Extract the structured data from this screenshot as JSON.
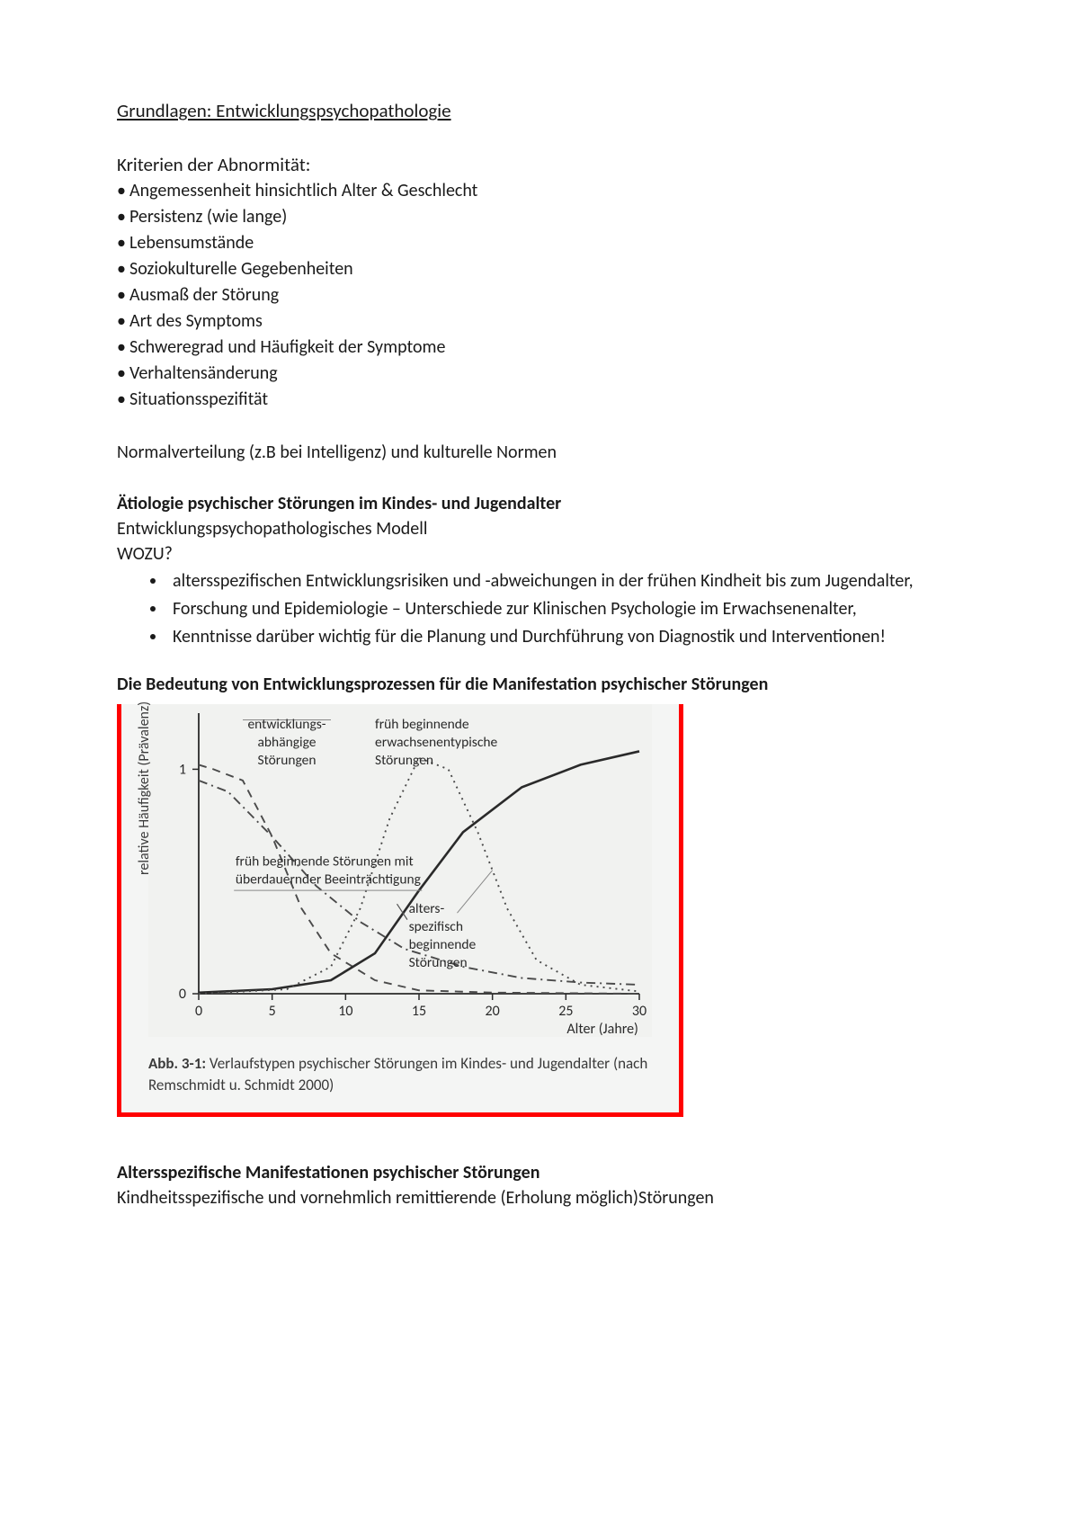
{
  "title": "Grundlagen: Entwicklungspsychopathologie",
  "kriterien_heading": "Kriterien der Abnormität:",
  "kriterien": [
    "Angemessenheit hinsichtlich Alter & Geschlecht",
    "Persistenz (wie lange)",
    "Lebensumstände",
    "Soziokulturelle Gegebenheiten",
    "Ausmaß der Störung",
    "Art des Symptoms",
    "Schweregrad und Häufigkeit der Symptome",
    "Verhaltensänderung",
    "Situationsspezifität"
  ],
  "normal_para": "Normalverteilung (z.B bei Intelligenz) und kulturelle Normen",
  "etiologie_heading": "Ätiologie psychischer Störungen im Kindes- und Jugendalter",
  "etiologie_sub1": "Entwicklungspsychopathologisches Modell",
  "etiologie_sub2": "WOZU?",
  "wozu_bullets": [
    "altersspezifischen Entwicklungsrisiken und -abweichungen in der frühen Kindheit bis zum Jugendalter,",
    "Forschung und Epidemiologie – Unterschiede zur Klinischen Psychologie im Erwachsenenalter,",
    "Kenntnisse darüber wichtig für die Planung und Durchführung von Diagnostik und Interventionen!"
  ],
  "bedeutung_heading": "Die Bedeutung von Entwicklungsprozessen für die Manifestation psychischer Störungen",
  "chart": {
    "type": "line",
    "background_color": "#f1f2f0",
    "axis_color": "#2a2a2a",
    "line_colors": {
      "solid": "#2a2a2a",
      "dashed": "#4a4a4a",
      "dotted": "#4a4a4a",
      "dashdot": "#4a4a4a"
    },
    "xlim": [
      0,
      30
    ],
    "ylim": [
      0,
      1.25
    ],
    "xticks": [
      0,
      5,
      10,
      15,
      20,
      25,
      30
    ],
    "yticks": [
      0,
      1
    ],
    "x_axis_label": "Alter (Jahre)",
    "y_axis_label": "relative Häufigkeit (Prävalenz)",
    "series": [
      {
        "name": "entwicklungsabhängige Störungen",
        "style": "dashed",
        "points": [
          [
            0,
            1.02
          ],
          [
            1,
            1.0
          ],
          [
            3,
            0.95
          ],
          [
            5,
            0.7
          ],
          [
            7,
            0.38
          ],
          [
            9,
            0.18
          ],
          [
            12,
            0.06
          ],
          [
            15,
            0.015
          ],
          [
            20,
            0.005
          ],
          [
            30,
            0.0
          ]
        ]
      },
      {
        "name": "früh beginnende erwachsenentypische Störungen",
        "style": "solid",
        "points": [
          [
            0,
            0.005
          ],
          [
            5,
            0.02
          ],
          [
            9,
            0.06
          ],
          [
            12,
            0.18
          ],
          [
            15,
            0.46
          ],
          [
            18,
            0.72
          ],
          [
            22,
            0.92
          ],
          [
            26,
            1.02
          ],
          [
            30,
            1.08
          ]
        ]
      },
      {
        "name": "altersspezifisch beginnende Störungen",
        "style": "dotted",
        "points": [
          [
            0,
            0.0
          ],
          [
            6,
            0.02
          ],
          [
            9,
            0.12
          ],
          [
            11,
            0.38
          ],
          [
            13,
            0.78
          ],
          [
            15,
            1.05
          ],
          [
            17,
            1.0
          ],
          [
            19,
            0.72
          ],
          [
            21,
            0.38
          ],
          [
            23,
            0.15
          ],
          [
            26,
            0.04
          ],
          [
            30,
            0.01
          ]
        ]
      },
      {
        "name": "früh beginnende Störungen mit überdauernder Beeinträchtigung",
        "style": "dashdot",
        "points": [
          [
            0,
            0.95
          ],
          [
            2,
            0.9
          ],
          [
            5,
            0.7
          ],
          [
            8,
            0.48
          ],
          [
            11,
            0.32
          ],
          [
            14,
            0.2
          ],
          [
            18,
            0.12
          ],
          [
            22,
            0.07
          ],
          [
            26,
            0.05
          ],
          [
            30,
            0.04
          ]
        ]
      }
    ],
    "annotations": {
      "entw_l1": "entwicklungs-",
      "entw_l2": "abhängige",
      "entw_l3": "Störungen",
      "frueh_erw_l1": "früh beginnende",
      "frueh_erw_l2": "erwachsenentypische",
      "frueh_erw_l3": "Störungen",
      "frueh_ueber_l1": "früh beginnende Störungen mit",
      "frueh_ueber_l2": "überdauernder Beeinträchtigung",
      "alters_l1": "alters-",
      "alters_l2": "spezifisch",
      "alters_l3": "beginnende",
      "alters_l4": "Störungen"
    },
    "caption_bold": "Abb. 3-1:",
    "caption_rest": " Verlaufstypen psychischer Störungen im Kindes- und Jugendalter (nach Remschmidt u. Schmidt 2000)",
    "frame_color": "#ff0000"
  },
  "alters_heading": "Altersspezifische Manifestationen psychischer Störungen",
  "alters_sub": "Kindheitsspezifische und vornehmlich remittierende  (Erholung möglich)Störungen"
}
